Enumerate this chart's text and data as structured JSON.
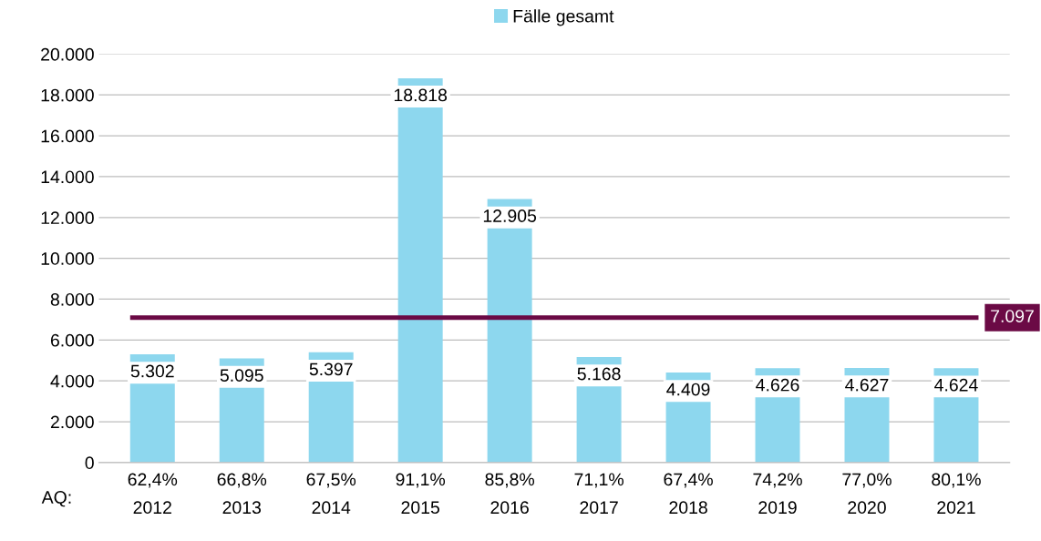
{
  "chart_data": {
    "type": "bar",
    "categories": [
      "62,4%\n2012",
      "66,8%\n2013",
      "67,5%\n2014",
      "91,1%\n2015",
      "85,8%\n2016",
      "71,1%\n2017",
      "67,4%\n2018",
      "74,2%\n2019",
      "77,0%\n2020",
      "80,1%\n2021"
    ],
    "series": [
      {
        "name": "Fälle gesamt",
        "color": "#8dd7ee",
        "values": [
          5302,
          5095,
          5397,
          18818,
          12905,
          5168,
          4409,
          4626,
          4627,
          4624
        ],
        "value_labels": [
          "5.302",
          "5.095",
          "5.397",
          "18.818",
          "12.905",
          "5.168",
          "4.409",
          "4.626",
          "4.627",
          "4.624"
        ]
      }
    ],
    "ylim": [
      0,
      20000
    ],
    "yticks": [
      {
        "value": 0,
        "label": "0"
      },
      {
        "value": 2000,
        "label": "2.000"
      },
      {
        "value": 4000,
        "label": "4.000"
      },
      {
        "value": 6000,
        "label": "6.000"
      },
      {
        "value": 8000,
        "label": "8.000"
      },
      {
        "value": 10000,
        "label": "10.000"
      },
      {
        "value": 12000,
        "label": "12.000"
      },
      {
        "value": 14000,
        "label": "14.000"
      },
      {
        "value": 16000,
        "label": "16.000"
      },
      {
        "value": 18000,
        "label": "18.000"
      },
      {
        "value": 20000,
        "label": "20.000"
      }
    ],
    "ref_lines": [
      {
        "axis": "y",
        "value": 7097,
        "label": "7.097",
        "color": "#6b0a45"
      }
    ],
    "annotations": [
      "AQ:"
    ],
    "grid": "y",
    "legend": "top"
  }
}
